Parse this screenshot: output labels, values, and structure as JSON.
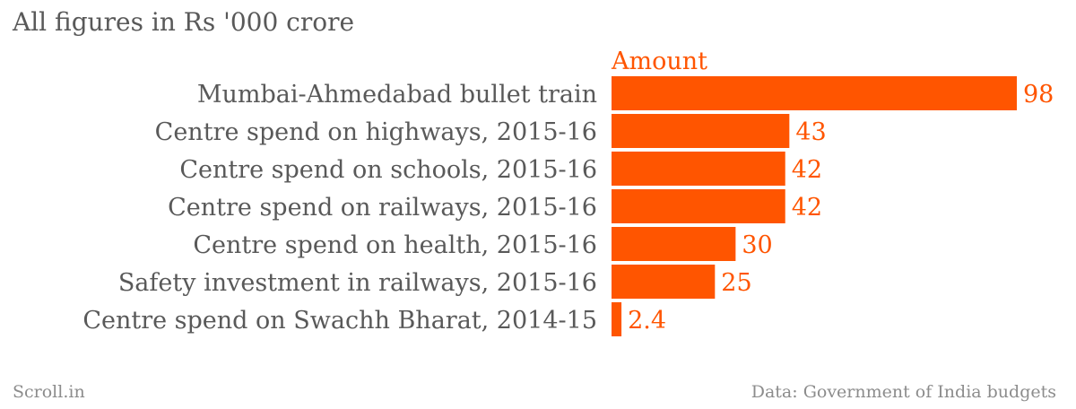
{
  "subtitle": "All figures in Rs '000 crore",
  "footer": {
    "source_brand": "Scroll.in",
    "data_note": "Data: Government of India budgets"
  },
  "colors": {
    "bar": "#ff5500",
    "label": "#595959",
    "value": "#ff5500"
  },
  "chart_data": {
    "type": "bar",
    "orientation": "horizontal",
    "series": [
      {
        "name": "Amount",
        "values": [
          98,
          43,
          42,
          42,
          30,
          25,
          2.4
        ]
      }
    ],
    "categories": [
      "Mumbai-Ahmedabad bullet train",
      "Centre spend on highways, 2015-16",
      "Centre spend on schools, 2015-16",
      "Centre spend on railways, 2015-16",
      "Centre spend on health, 2015-16",
      "Safety investment in railways, 2015-16",
      "Centre spend on Swachh Bharat, 2014-15"
    ],
    "value_labels": [
      "98",
      "43",
      "42",
      "42",
      "30",
      "25",
      "2.4"
    ],
    "xlim": [
      0,
      98
    ],
    "title": "All figures in Rs '000 crore",
    "xlabel": "",
    "ylabel": "",
    "grid": false
  }
}
